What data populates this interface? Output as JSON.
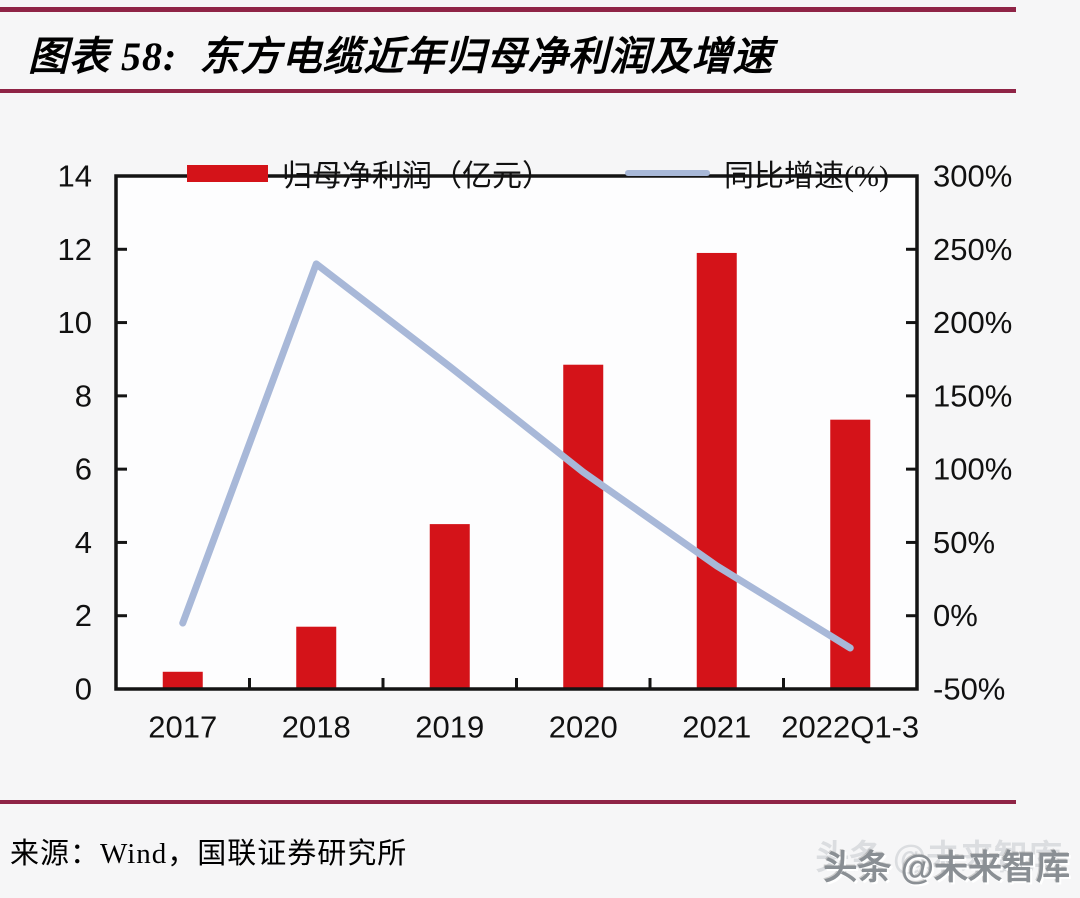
{
  "page": {
    "title": "图表 58:  东方电缆近年归母净利润及增速",
    "source": "来源：Wind，国联证券研究所",
    "watermark": "头条 @未来智库"
  },
  "colors": {
    "accent_rule": "#8f2446",
    "bar": "#d41319",
    "line": "#a8b8d8",
    "axis": "#141414",
    "text": "#111111",
    "plot_background": "#fdfdfe",
    "page_background": "#f6f6f7"
  },
  "legend": [
    {
      "label": "归母净利润（亿元）",
      "swatch": "bar"
    },
    {
      "label": "同比增速(%)",
      "swatch": "line"
    }
  ],
  "chart_data": {
    "type": "bar+line",
    "title": "东方电缆近年归母净利润及增速",
    "categories": [
      "2017",
      "2018",
      "2019",
      "2020",
      "2021",
      "2022Q1-3"
    ],
    "series": [
      {
        "name": "归母净利润（亿元）",
        "type": "bar",
        "axis": "left",
        "values": [
          0.47,
          1.7,
          4.5,
          8.85,
          11.9,
          7.35
        ]
      },
      {
        "name": "同比增速(%)",
        "type": "line",
        "axis": "right",
        "values": [
          -5,
          240,
          170,
          98,
          34,
          -22
        ]
      }
    ],
    "left_axis": {
      "min": 0,
      "max": 14,
      "step": 2,
      "labels": [
        "0",
        "2",
        "4",
        "6",
        "8",
        "10",
        "12",
        "14"
      ]
    },
    "right_axis": {
      "min": -50,
      "max": 300,
      "step": 50,
      "labels": [
        "-50%",
        "0%",
        "50%",
        "100%",
        "150%",
        "200%",
        "250%",
        "300%"
      ]
    },
    "grid": false,
    "legend_position": "top"
  }
}
